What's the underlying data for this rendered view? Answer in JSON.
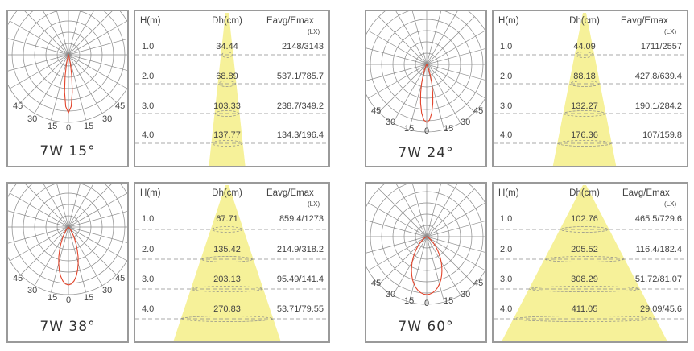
{
  "colors": {
    "beam": "#f6f199",
    "curve": "#e2442b",
    "grid": "#8a8a8a",
    "dash": "#8c8c8c",
    "border": "#9a9a9a"
  },
  "blocks": [
    {
      "title": "7W 15°",
      "polar_labels": {
        "outer_left": "45",
        "inner_left": "30",
        "mid_left": "15",
        "zero": "0",
        "mid_right": "15",
        "inner_right": "30",
        "outer_right": "45"
      },
      "headers": {
        "h": "H(m)",
        "dh": "Dh(cm)",
        "eavg": "Eavg/Emax",
        "unit": "(LX)"
      },
      "rows": [
        {
          "h": "1.0",
          "dh": "34.44",
          "eavg": "2148/3143"
        },
        {
          "h": "2.0",
          "dh": "68.89",
          "eavg": "537.1/785.7"
        },
        {
          "h": "3.0",
          "dh": "103.33",
          "eavg": "238.7/349.2"
        },
        {
          "h": "4.0",
          "dh": "137.77",
          "eavg": "134.3/196.4"
        }
      ]
    },
    {
      "title": "7W 24°",
      "polar_labels": {
        "outer_left": "45",
        "inner_left": "30",
        "mid_left": "15",
        "zero": "0",
        "mid_right": "15",
        "inner_right": "30",
        "outer_right": "45"
      },
      "headers": {
        "h": "H(m)",
        "dh": "Dh(cm)",
        "eavg": "Eavg/Emax",
        "unit": "(LX)"
      },
      "rows": [
        {
          "h": "1.0",
          "dh": "44.09",
          "eavg": "1711/2557"
        },
        {
          "h": "2.0",
          "dh": "88.18",
          "eavg": "427.8/639.4"
        },
        {
          "h": "3.0",
          "dh": "132.27",
          "eavg": "190.1/284.2"
        },
        {
          "h": "4.0",
          "dh": "176.36",
          "eavg": "107/159.8"
        }
      ]
    },
    {
      "title": "7W 38°",
      "polar_labels": {
        "outer_left": "45",
        "inner_left": "30",
        "mid_left": "15",
        "zero": "0",
        "mid_right": "15",
        "inner_right": "30",
        "outer_right": "45"
      },
      "headers": {
        "h": "H(m)",
        "dh": "Dh(cm)",
        "eavg": "Eavg/Emax",
        "unit": "(LX)"
      },
      "rows": [
        {
          "h": "1.0",
          "dh": "67.71",
          "eavg": "859.4/1273"
        },
        {
          "h": "2.0",
          "dh": "135.42",
          "eavg": "214.9/318.2"
        },
        {
          "h": "3.0",
          "dh": "203.13",
          "eavg": "95.49/141.4"
        },
        {
          "h": "4.0",
          "dh": "270.83",
          "eavg": "53.71/79.55"
        }
      ]
    },
    {
      "title": "7W 60°",
      "polar_labels": {
        "outer_left": "45",
        "inner_left": "30",
        "mid_left": "15",
        "zero": "0",
        "mid_right": "15",
        "inner_right": "30",
        "outer_right": "45"
      },
      "headers": {
        "h": "H(m)",
        "dh": "Dh(cm)",
        "eavg": "Eavg/Emax",
        "unit": "(LX)"
      },
      "rows": [
        {
          "h": "1.0",
          "dh": "102.76",
          "eavg": "465.5/729.6"
        },
        {
          "h": "2.0",
          "dh": "205.52",
          "eavg": "116.4/182.4"
        },
        {
          "h": "3.0",
          "dh": "308.29",
          "eavg": "51.72/81.07"
        },
        {
          "h": "4.0",
          "dh": "411.05",
          "eavg": "29.09/45.6"
        }
      ]
    }
  ]
}
